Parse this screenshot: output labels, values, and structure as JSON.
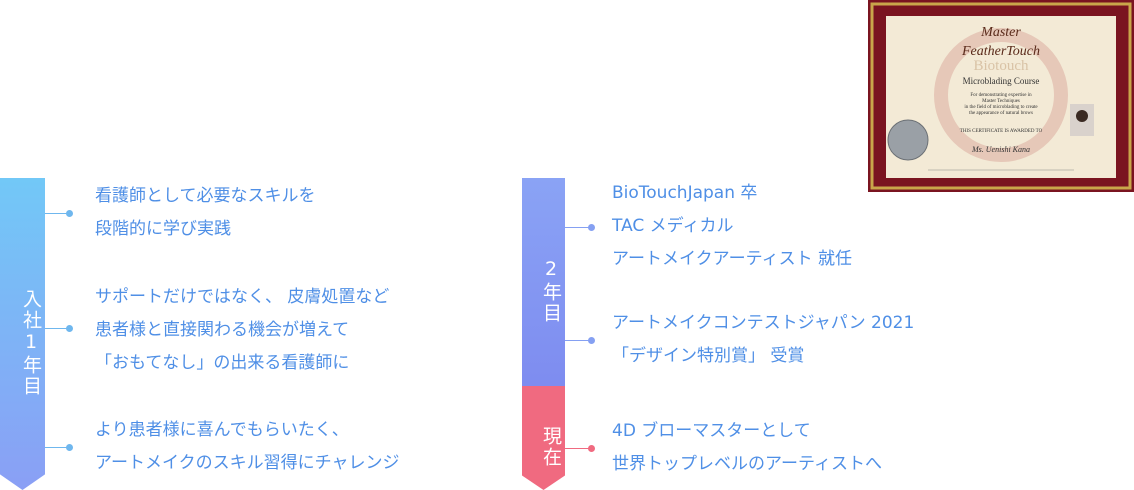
{
  "timeline": [
    {
      "period": "入社1年目",
      "items": [
        {
          "lines": [
            "看護師として必要なスキルを",
            "段階的に学び実践"
          ]
        },
        {
          "lines": [
            "サポートだけではなく、 皮膚処置など",
            "患者様と直接関わる機会が増えて",
            "「おもてなし」の出来る看護師に"
          ]
        },
        {
          "lines": [
            "より患者様に喜んでもらいたく、",
            "アートメイクのスキル習得にチャレンジ"
          ]
        }
      ]
    },
    {
      "period": "2年目",
      "items": [
        {
          "lines": [
            "BioTouchJapan 卒",
            "TAC メディカル",
            "アートメイクアーティスト 就任"
          ]
        },
        {
          "lines": [
            "アートメイクコンテストジャパン 2021",
            "「デザイン特別賞」 受賞"
          ]
        }
      ]
    },
    {
      "period": "現在",
      "items": [
        {
          "lines": [
            "4D ブローマスターとして",
            "世界トップレベルのアーティストへ"
          ]
        }
      ]
    }
  ],
  "certificate": {
    "title": "Master",
    "brand": "FeatherTouch",
    "logo": "Biotouch",
    "course": "Microblading Course",
    "description": [
      "For demonstrating expertise in",
      "Master Techniques",
      "in the field of microblading to create",
      "the appearance of natural brows"
    ],
    "awarded": "THIS CERTIFICATE IS AWARDED TO",
    "name": "Ms. Uenishi Kana"
  }
}
